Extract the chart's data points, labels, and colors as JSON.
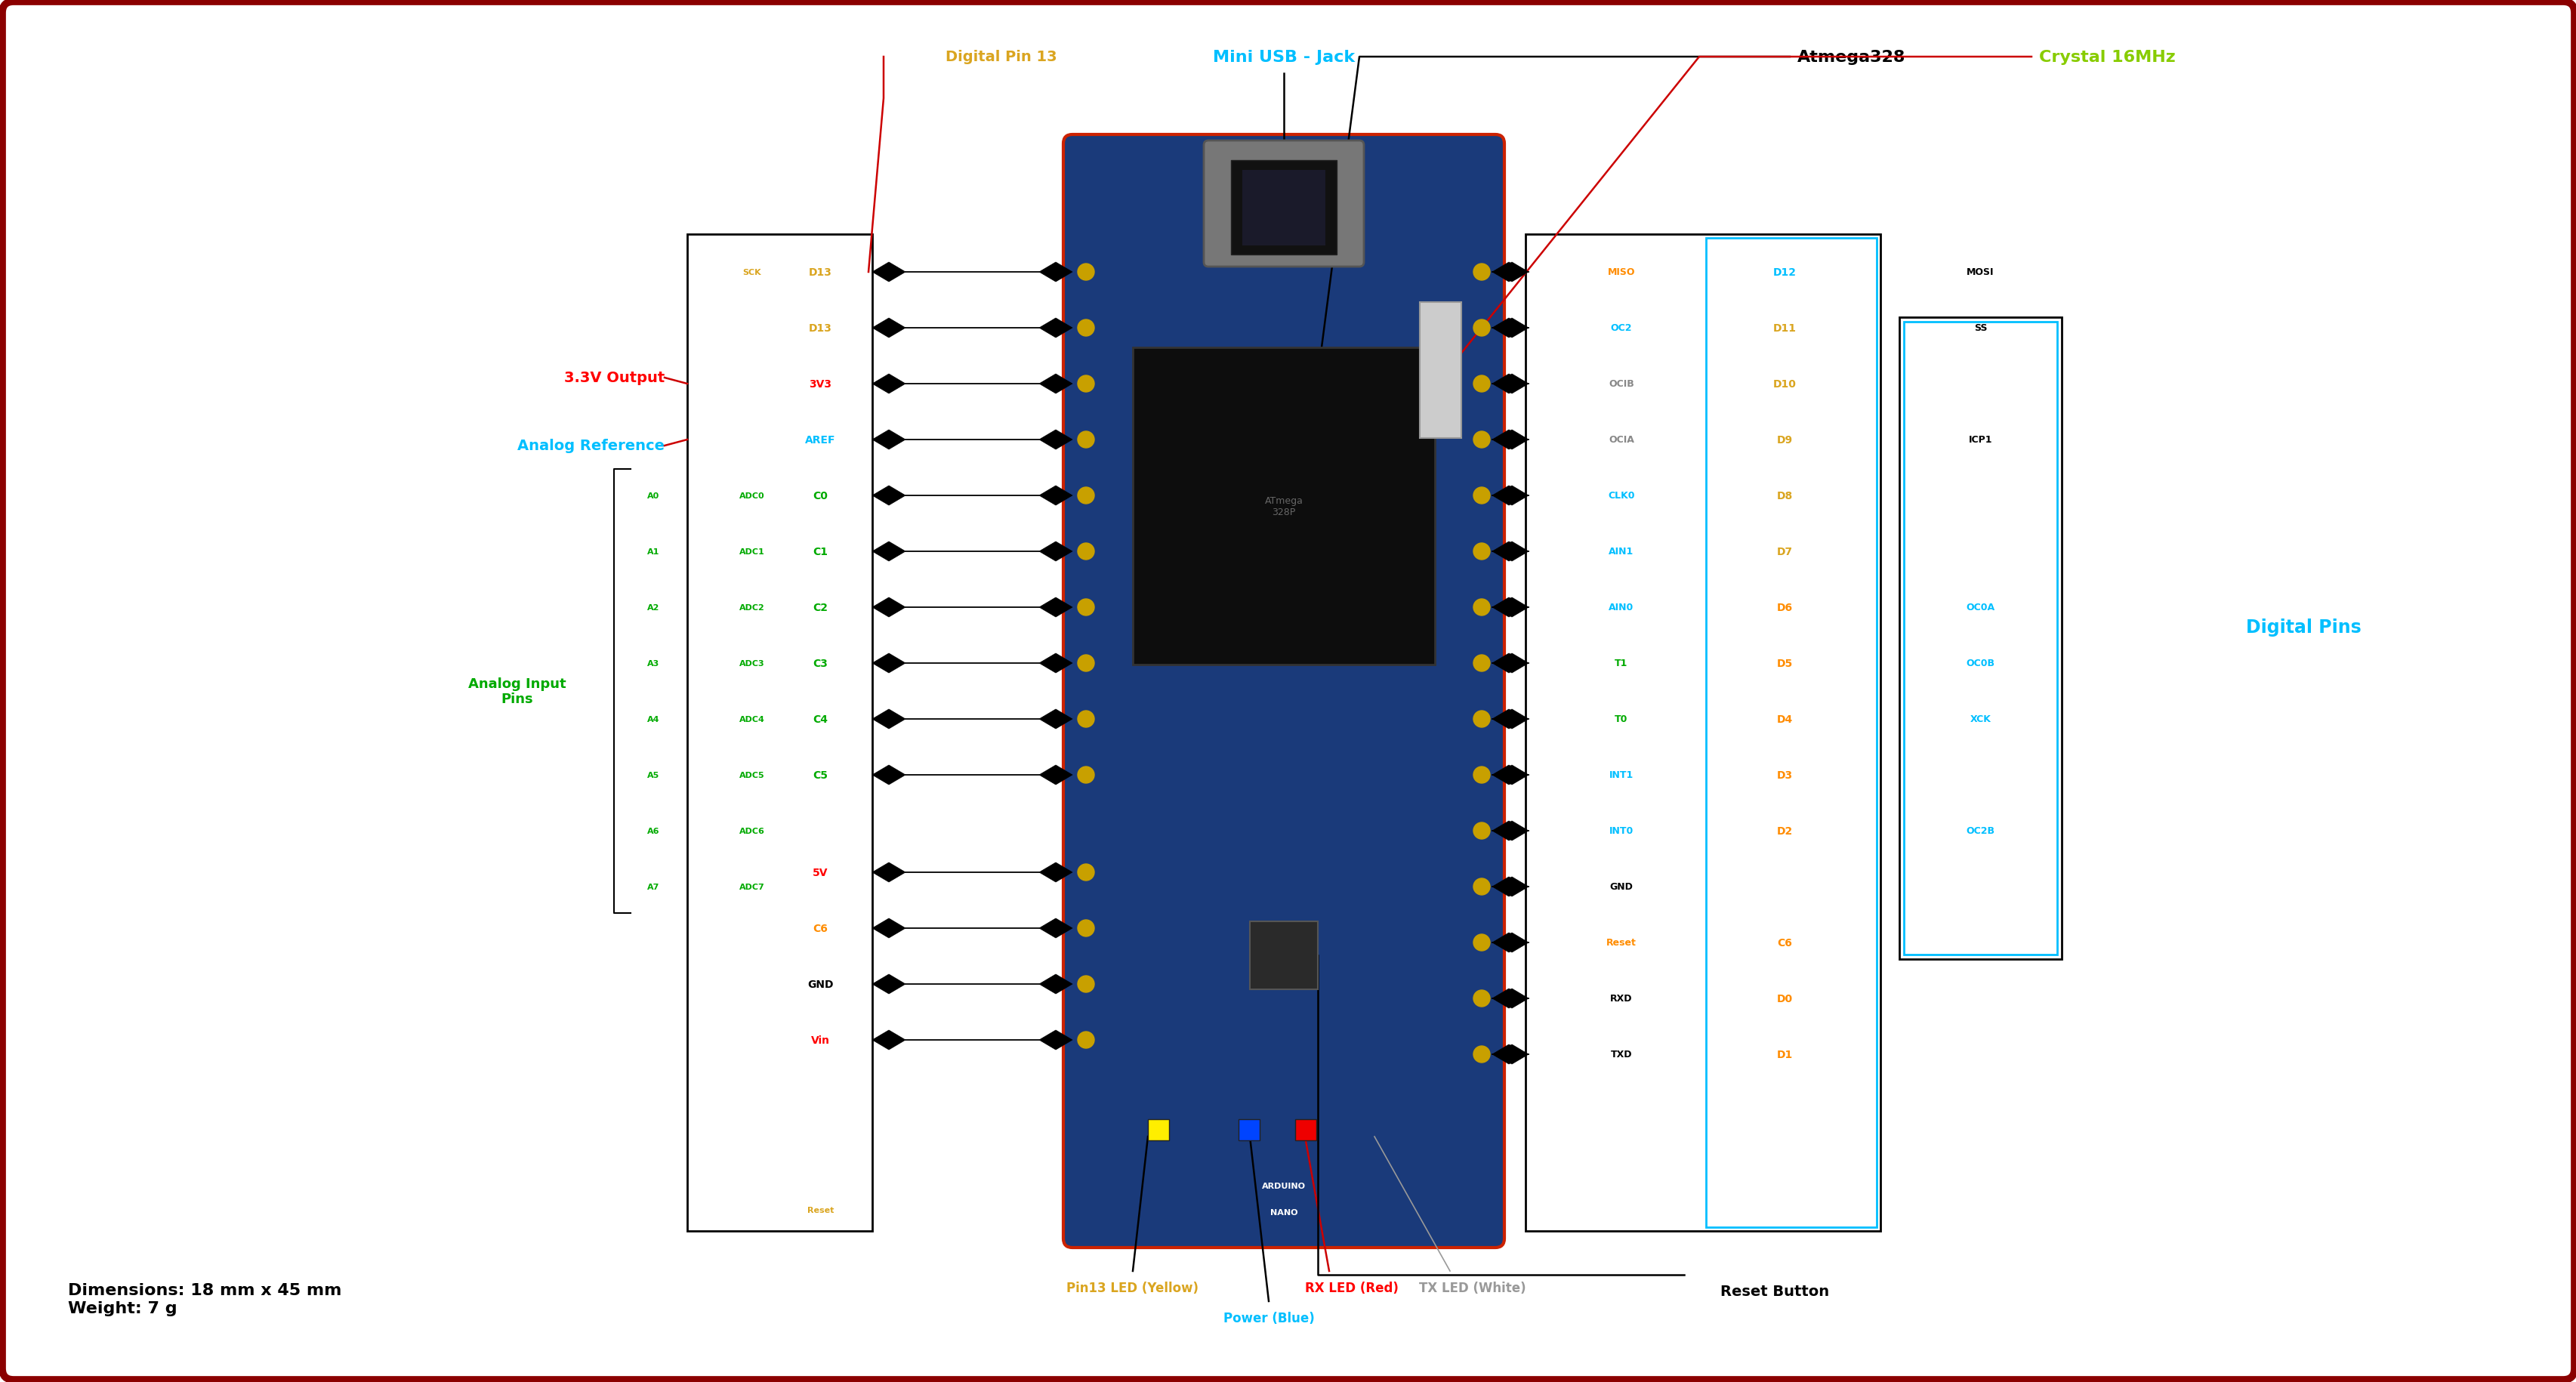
{
  "bg_color": "#ffffff",
  "border_color": "#8B0000",
  "fig_width": 34.12,
  "fig_height": 18.31,
  "title_mini_usb": "Mini USB - Jack",
  "title_mini_usb_color": "#00BFFF",
  "title_atmega": "Atmega328",
  "title_atmega_color": "#000000",
  "title_crystal": "Crystal 16MHz",
  "title_crystal_color": "#88CC00",
  "title_digital_pin13": "Digital Pin 13",
  "title_digital_pin13_color": "#DAA520",
  "title_33v": "3.3V Output",
  "title_33v_color": "#FF0000",
  "title_aref": "Analog Reference",
  "title_aref_color": "#00BFFF",
  "title_analog_input": "Analog Input\nPins",
  "title_analog_input_color": "#00AA00",
  "title_digital_pins": "Digital Pins",
  "title_digital_pins_color": "#00BFFF",
  "title_pin13_led": "Pin13 LED (Yellow)",
  "title_pin13_led_color": "#DAA520",
  "title_power": "Power (Blue)",
  "title_power_color": "#00BFFF",
  "title_rx_led": "RX LED (Red)",
  "title_rx_led_color": "#FF0000",
  "title_tx_led": "TX LED (White)",
  "title_tx_led_color": "#999999",
  "title_reset_btn": "Reset Button",
  "title_reset_btn_color": "#000000",
  "dim_text": "Dimensions: 18 mm x 45 mm\nWeight: 7 g",
  "dim_text_color": "#000000",
  "left_top_pins": [
    [
      "SCK",
      "#DAA520"
    ],
    [
      "D13",
      "#DAA520"
    ],
    [
      "3V3",
      "#FF0000"
    ],
    [
      "AREF",
      "#00BFFF"
    ],
    [
      "C0",
      "#00AA00"
    ],
    [
      "C1",
      "#00AA00"
    ],
    [
      "C2",
      "#00AA00"
    ],
    [
      "C3",
      "#00AA00"
    ],
    [
      "C4",
      "#00AA00"
    ],
    [
      "C5",
      "#00AA00"
    ]
  ],
  "left_bot_pins": [
    [
      "5V",
      "#FF0000"
    ],
    [
      "C6",
      "#FF8C00"
    ],
    [
      "GND",
      "#000000"
    ],
    [
      "Vin",
      "#FF0000"
    ]
  ],
  "adc_labels": [
    "ADC0",
    "ADC1",
    "ADC2",
    "ADC3",
    "ADC4",
    "ADC5",
    "ADC6",
    "ADC7"
  ],
  "a_labels": [
    "A0",
    "A1",
    "A2",
    "A3",
    "A4",
    "A5",
    "A6",
    "A7"
  ],
  "right_col1": [
    [
      "MISO",
      "#FF8C00"
    ],
    [
      "OC2",
      "#00BFFF"
    ],
    [
      "OCIB",
      "#888888"
    ],
    [
      "OCIA",
      "#888888"
    ],
    [
      "CLK0",
      "#00BFFF"
    ],
    [
      "AIN1",
      "#00BFFF"
    ],
    [
      "AIN0",
      "#00BFFF"
    ],
    [
      "T1",
      "#00AA00"
    ],
    [
      "T0",
      "#00AA00"
    ],
    [
      "INT1",
      "#00BFFF"
    ],
    [
      "INT0",
      "#00BFFF"
    ],
    [
      "GND",
      "#000000"
    ],
    [
      "Reset",
      "#FF8C00"
    ],
    [
      "RXD",
      "#000000"
    ],
    [
      "TXD",
      "#000000"
    ]
  ],
  "right_col2": [
    [
      "D12",
      "#00BFFF"
    ],
    [
      "D11",
      "#DAA520"
    ],
    [
      "D10",
      "#DAA520"
    ],
    [
      "D9",
      "#DAA520"
    ],
    [
      "D8",
      "#DAA520"
    ],
    [
      "D7",
      "#DAA520"
    ],
    [
      "D6",
      "#FF8C00"
    ],
    [
      "D5",
      "#FF8C00"
    ],
    [
      "D4",
      "#FF8C00"
    ],
    [
      "D3",
      "#FF8C00"
    ],
    [
      "D2",
      "#FF8C00"
    ],
    [
      "",
      "#000000"
    ],
    [
      "C6",
      "#FF8C00"
    ],
    [
      "D0",
      "#FF8C00"
    ],
    [
      "D1",
      "#FF8C00"
    ]
  ],
  "rbox2_entries": [
    [
      "MOSI",
      "#000000"
    ],
    [
      "SS",
      "#000000"
    ],
    [
      "",
      "#000000"
    ],
    [
      "ICP1",
      "#000000"
    ],
    [
      "",
      "#000000"
    ],
    [
      "OC0A",
      "#00BFFF"
    ],
    [
      "OC0B",
      "#00BFFF"
    ],
    [
      "XCK",
      "#00BFFF"
    ],
    [
      "",
      "#000000"
    ],
    [
      "OC2B",
      "#00BFFF"
    ]
  ]
}
